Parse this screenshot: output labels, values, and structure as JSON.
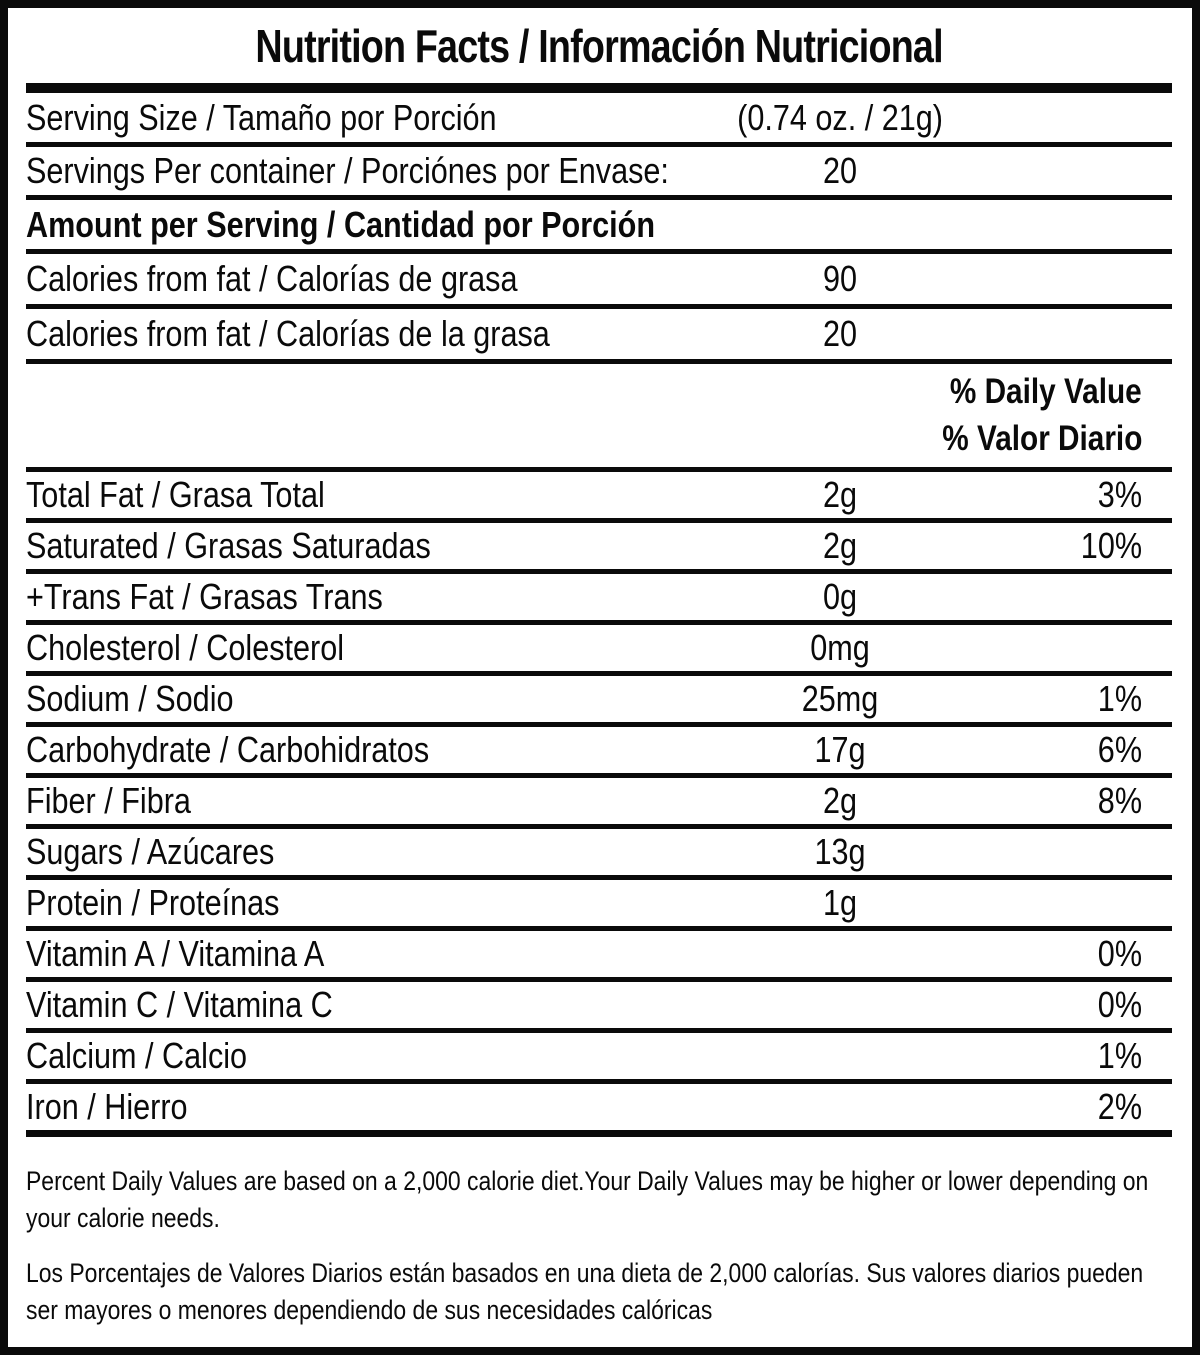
{
  "colors": {
    "text": "#0a0a0a",
    "background": "#ffffff"
  },
  "title": "Nutrition Facts / Información Nutricional",
  "serving_size": {
    "label": "Serving Size / Tamaño por Porción",
    "value": "(0.74 oz. / 21g)"
  },
  "servings_per_container": {
    "label": "Servings Per container / Porciónes por Envase:",
    "value": "20"
  },
  "amount_per_serving_header": "Amount per Serving / Cantidad por Porción",
  "calorie_rows": [
    {
      "label": "Calories from fat / Calorías de grasa",
      "value": "90"
    },
    {
      "label": "Calories from fat / Calorías de la grasa",
      "value": "20"
    }
  ],
  "daily_value_header": {
    "line1": "% Daily Value",
    "line2": "% Valor Diario"
  },
  "nutrient_rows": [
    {
      "label": "Total Fat / Grasa Total",
      "value": "2g",
      "pct": "3%"
    },
    {
      "label": "Saturated / Grasas Saturadas",
      "value": "2g",
      "pct": "10%"
    },
    {
      "label": "+Trans Fat / Grasas Trans",
      "value": "0g",
      "pct": ""
    },
    {
      "label": "Cholesterol / Colesterol",
      "value": "0mg",
      "pct": ""
    },
    {
      "label": "Sodium / Sodio",
      "value": "25mg",
      "pct": "1%"
    },
    {
      "label": "Carbohydrate / Carbohidratos",
      "value": "17g",
      "pct": "6%"
    },
    {
      "label": "Fiber / Fibra",
      "value": "2g",
      "pct": "8%"
    },
    {
      "label": "Sugars / Azúcares",
      "value": "13g",
      "pct": ""
    },
    {
      "label": "Protein / Proteínas",
      "value": "1g",
      "pct": ""
    },
    {
      "label": "Vitamin A / Vitamina A",
      "value": "",
      "pct": "0%"
    },
    {
      "label": "Vitamin C / Vitamina C",
      "value": "",
      "pct": "0%"
    },
    {
      "label": "Calcium / Calcio",
      "value": "",
      "pct": "1%"
    },
    {
      "label": "Iron / Hierro",
      "value": "",
      "pct": "2%"
    }
  ],
  "footnotes": {
    "english": "Percent Daily Values are based on a 2,000 calorie diet.Your Daily Values may be higher or lower depending on your calorie needs.",
    "spanish": "Los Porcentajes de Valores Diarios están basados en una dieta de 2,000 calorías. Sus valores diarios pueden ser mayores o menores dependiendo de sus necesidades calóricas"
  }
}
